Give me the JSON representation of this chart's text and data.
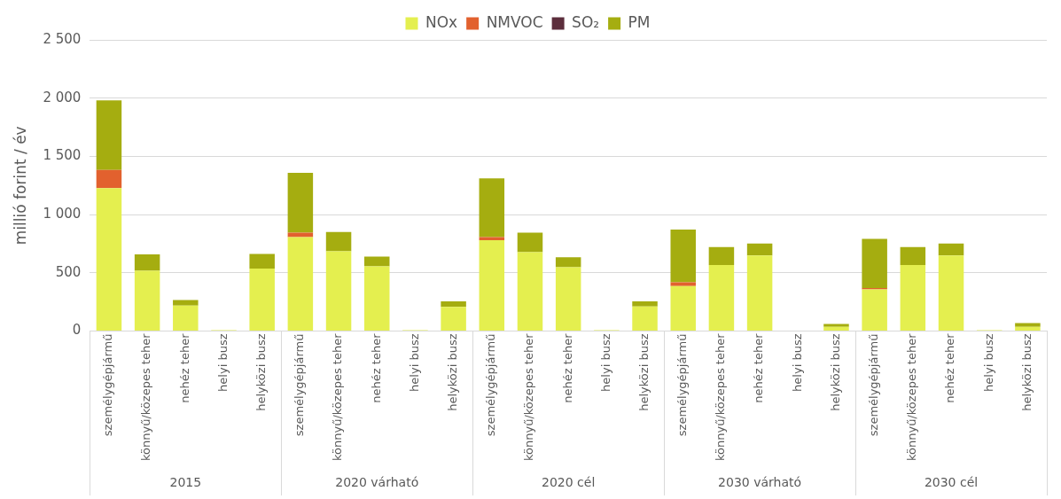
{
  "chart_data": {
    "type": "bar",
    "stacked": true,
    "ylabel": "millió forint / év",
    "categories": [
      "személygépjármű",
      "könnyű/közepes teher",
      "nehéz teher",
      "helyi busz",
      "helyközi busz",
      "személygépjármű",
      "könnyű/közepes teher",
      "nehéz teher",
      "helyi busz",
      "helyközi busz",
      "személygépjármű",
      "könnyű/közepes teher",
      "nehéz teher",
      "helyi busz",
      "helyközi busz",
      "személygépjármű",
      "könnyű/közepes teher",
      "nehéz teher",
      "helyi busz",
      "helyközi busz",
      "személygépjármű",
      "könnyű/közepes teher",
      "nehéz teher",
      "helyi busz",
      "helyközi busz"
    ],
    "annotations": [
      "2015",
      "2020 várható",
      "2020 cél",
      "2030 várható",
      "2030 cél"
    ],
    "series": [
      {
        "name": "NOx",
        "color": "#e4ef4f",
        "values": [
          1228,
          518,
          218,
          8,
          537,
          807,
          685,
          555,
          8,
          207,
          781,
          678,
          548,
          8,
          211,
          386,
          568,
          649,
          0,
          37,
          357,
          568,
          649,
          8,
          37
        ]
      },
      {
        "name": "NMVOC",
        "color": "#e2612e",
        "values": [
          156,
          0,
          0,
          0,
          0,
          37,
          0,
          0,
          0,
          0,
          26,
          0,
          0,
          0,
          0,
          32,
          0,
          0,
          0,
          0,
          12,
          0,
          0,
          0,
          0
        ]
      },
      {
        "name": "SO₂",
        "color": "#5c2e3c",
        "values": [
          0,
          0,
          0,
          0,
          0,
          0,
          0,
          0,
          0,
          0,
          0,
          0,
          0,
          0,
          0,
          0,
          0,
          0,
          0,
          0,
          0,
          0,
          0,
          0,
          0
        ]
      },
      {
        "name": "PM",
        "color": "#a5ad10",
        "values": [
          596,
          141,
          48,
          0,
          125,
          514,
          166,
          85,
          0,
          48,
          503,
          166,
          85,
          0,
          45,
          454,
          154,
          102,
          0,
          24,
          422,
          154,
          102,
          0,
          32
        ]
      }
    ],
    "ylim": [
      0,
      2500
    ],
    "yticks": [
      0,
      500,
      {
        "value": 1000,
        "label": "1 000"
      },
      {
        "value": 1500,
        "label": "1 500"
      },
      {
        "value": 2000,
        "label": "2 000"
      },
      {
        "value": 2500,
        "label": "2 500"
      }
    ],
    "grid": "y",
    "legend": "top"
  }
}
